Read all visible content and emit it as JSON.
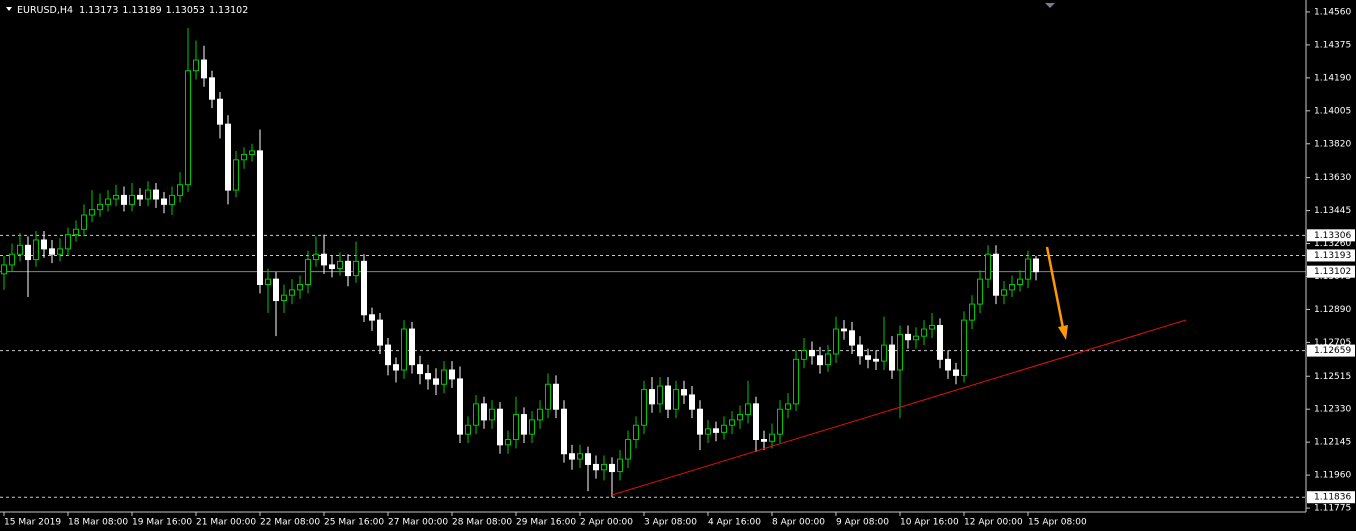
{
  "chart_data": {
    "type": "candlestick",
    "symbol": "EURUSD,H4",
    "bull_color": "#00c800",
    "bear_color": "#ffffff",
    "level_color": "#c8c8c8",
    "bid_color": "#778899",
    "ylim": [
      1.11753,
      1.14627
    ],
    "yticks": [
      {
        "value": 1.1456,
        "label": "1.14560"
      },
      {
        "value": 1.14375,
        "label": "1.14375"
      },
      {
        "value": 1.1419,
        "label": "1.14190"
      },
      {
        "value": 1.14005,
        "label": "1.14005"
      },
      {
        "value": 1.1382,
        "label": "1.13820"
      },
      {
        "value": 1.1363,
        "label": "1.13630"
      },
      {
        "value": 1.13445,
        "label": "1.13445"
      },
      {
        "value": 1.1326,
        "label": "1.13260"
      },
      {
        "value": 1.13075,
        "label": "1.13075"
      },
      {
        "value": 1.1289,
        "label": "1.12890"
      },
      {
        "value": 1.12705,
        "label": "1.12705"
      },
      {
        "value": 1.12515,
        "label": "1.12515"
      },
      {
        "value": 1.1233,
        "label": "1.12330"
      },
      {
        "value": 1.12145,
        "label": "1.12145"
      },
      {
        "value": 1.1196,
        "label": "1.11960"
      },
      {
        "value": 1.11775,
        "label": "1.11775"
      }
    ],
    "levels": [
      {
        "value": 1.13306,
        "label": "1.13306"
      },
      {
        "value": 1.13193,
        "label": "1.13193"
      },
      {
        "value": 1.12659,
        "label": "1.12659"
      },
      {
        "value": 1.11836,
        "label": "1.11836"
      }
    ],
    "bid": {
      "value": 1.13102,
      "label": "1.13102"
    },
    "categories": [
      "15 Mar 2019",
      null,
      null,
      null,
      null,
      null,
      null,
      null,
      "18 Mar 08:00",
      null,
      null,
      null,
      null,
      null,
      null,
      null,
      "19 Mar 16:00",
      null,
      null,
      null,
      null,
      null,
      null,
      null,
      "21 Mar 00:00",
      null,
      null,
      null,
      null,
      null,
      null,
      null,
      "22 Mar 08:00",
      null,
      null,
      null,
      null,
      null,
      null,
      null,
      "25 Mar 16:00",
      null,
      null,
      null,
      null,
      null,
      null,
      null,
      "27 Mar 00:00",
      null,
      null,
      null,
      null,
      null,
      null,
      null,
      "28 Mar 08:00",
      null,
      null,
      null,
      null,
      null,
      null,
      null,
      "29 Mar 16:00",
      null,
      null,
      null,
      null,
      null,
      null,
      null,
      "2 Apr 00:00",
      null,
      null,
      null,
      null,
      null,
      null,
      null,
      "3 Apr 08:00",
      null,
      null,
      null,
      null,
      null,
      null,
      null,
      "4 Apr 16:00",
      null,
      null,
      null,
      null,
      null,
      null,
      null,
      "8 Apr 00:00",
      null,
      null,
      null,
      null,
      null,
      null,
      null,
      "9 Apr 08:00",
      null,
      null,
      null,
      null,
      null,
      null,
      null,
      "10 Apr 16:00",
      null,
      null,
      null,
      null,
      null,
      null,
      null,
      "12 Apr 00:00",
      null,
      null,
      null,
      null,
      null,
      null,
      null,
      "15 Apr 08:00",
      null
    ],
    "open": [
      1.1309,
      1.1314,
      1.132,
      1.1325,
      1.1317,
      1.1328,
      1.1323,
      1.132,
      1.1323,
      1.1331,
      1.1334,
      1.1342,
      1.1345,
      1.1348,
      1.1351,
      1.1353,
      1.1348,
      1.1353,
      1.1351,
      1.1356,
      1.1351,
      1.1348,
      1.1353,
      1.1359,
      1.1423,
      1.1429,
      1.1419,
      1.1407,
      1.1393,
      1.1356,
      1.1373,
      1.1376,
      1.1378,
      1.1303,
      1.1306,
      1.1294,
      1.1297,
      1.13,
      1.1303,
      1.1317,
      1.132,
      1.1314,
      1.1312,
      1.1316,
      1.1308,
      1.1316,
      1.1286,
      1.1283,
      1.1269,
      1.1258,
      1.1255,
      1.1278,
      1.1258,
      1.1253,
      1.125,
      1.1247,
      1.1255,
      1.125,
      1.1219,
      1.1224,
      1.1236,
      1.1227,
      1.1233,
      1.1213,
      1.1216,
      1.123,
      1.1219,
      1.1227,
      1.1233,
      1.1247,
      1.1233,
      1.1208,
      1.1205,
      1.1208,
      1.1202,
      1.1199,
      1.1202,
      1.1198,
      1.1205,
      1.1216,
      1.1224,
      1.1244,
      1.1236,
      1.1246,
      1.1233,
      1.1244,
      1.1241,
      1.1233,
      1.1219,
      1.1222,
      1.122,
      1.1224,
      1.1227,
      1.123,
      1.1236,
      1.1216,
      1.1215,
      1.1219,
      1.1233,
      1.1236,
      1.1261,
      1.1266,
      1.1263,
      1.1258,
      1.1264,
      1.1278,
      1.1277,
      1.1269,
      1.1263,
      1.1261,
      1.126,
      1.1269,
      1.1255,
      1.1275,
      1.1272,
      1.1274,
      1.1278,
      1.128,
      1.1261,
      1.1255,
      1.1252,
      1.1283,
      1.1292,
      1.1306,
      1.132,
      1.1297,
      1.13,
      1.1303,
      1.1306,
      1.13173
    ],
    "high": [
      1.1319,
      1.1326,
      1.1332,
      1.133,
      1.1333,
      1.1333,
      1.1328,
      1.1329,
      1.1335,
      1.1339,
      1.1348,
      1.1356,
      1.1354,
      1.1356,
      1.1359,
      1.1358,
      1.136,
      1.1357,
      1.1361,
      1.136,
      1.1355,
      1.1358,
      1.1366,
      1.1447,
      1.144,
      1.1437,
      1.1423,
      1.1411,
      1.1398,
      1.1378,
      1.138,
      1.1382,
      1.139,
      1.1312,
      1.131,
      1.1303,
      1.1306,
      1.1308,
      1.1322,
      1.133,
      1.1331,
      1.1319,
      1.1321,
      1.132,
      1.1327,
      1.132,
      1.129,
      1.1287,
      1.1273,
      1.1262,
      1.1283,
      1.1282,
      1.1263,
      1.1258,
      1.1256,
      1.126,
      1.126,
      1.1257,
      1.1229,
      1.1241,
      1.124,
      1.1238,
      1.1237,
      1.1221,
      1.124,
      1.1234,
      1.1232,
      1.1238,
      1.1253,
      1.1252,
      1.1238,
      1.1213,
      1.1213,
      1.1212,
      1.1207,
      1.1207,
      1.1206,
      1.121,
      1.1221,
      1.1229,
      1.1249,
      1.1251,
      1.1251,
      1.1251,
      1.1249,
      1.1249,
      1.1246,
      1.1238,
      1.1227,
      1.1226,
      1.1229,
      1.1232,
      1.1235,
      1.1249,
      1.124,
      1.1221,
      1.1225,
      1.1238,
      1.1242,
      1.1266,
      1.1273,
      1.1271,
      1.1268,
      1.1269,
      1.1285,
      1.1283,
      1.1282,
      1.1274,
      1.1267,
      1.1266,
      1.1285,
      1.1274,
      1.128,
      1.128,
      1.1279,
      1.1283,
      1.1287,
      1.1284,
      1.1266,
      1.1259,
      1.1288,
      1.1297,
      1.1311,
      1.1325,
      1.1325,
      1.1305,
      1.1308,
      1.1311,
      1.1322,
      1.13189
    ],
    "low": [
      1.13,
      1.131,
      1.1316,
      1.1296,
      1.1313,
      1.1318,
      1.1315,
      1.1316,
      1.1319,
      1.1327,
      1.133,
      1.1338,
      1.1341,
      1.1344,
      1.1347,
      1.1344,
      1.1344,
      1.1347,
      1.1347,
      1.1346,
      1.1343,
      1.1342,
      1.1349,
      1.1355,
      1.1418,
      1.1414,
      1.1402,
      1.1385,
      1.1348,
      1.1352,
      1.1368,
      1.1372,
      1.1298,
      1.1287,
      1.1274,
      1.1287,
      1.1292,
      1.1295,
      1.1298,
      1.1313,
      1.1309,
      1.1307,
      1.1308,
      1.1302,
      1.1304,
      1.1282,
      1.1277,
      1.1264,
      1.1252,
      1.1248,
      1.125,
      1.1253,
      1.1247,
      1.1244,
      1.1241,
      1.1242,
      1.1245,
      1.1214,
      1.1214,
      1.1219,
      1.1222,
      1.1222,
      1.1208,
      1.1208,
      1.1211,
      1.1214,
      1.1214,
      1.1222,
      1.1228,
      1.1228,
      1.1203,
      1.1199,
      1.12,
      1.1187,
      1.1194,
      1.1193,
      1.11836,
      1.1193,
      1.12,
      1.1211,
      1.1219,
      1.1231,
      1.1231,
      1.1228,
      1.1228,
      1.1236,
      1.1228,
      1.121,
      1.1214,
      1.1215,
      1.1216,
      1.1219,
      1.1222,
      1.1225,
      1.1209,
      1.121,
      1.1211,
      1.1214,
      1.1228,
      1.1232,
      1.1256,
      1.1258,
      1.1253,
      1.1254,
      1.1259,
      1.1272,
      1.1264,
      1.1258,
      1.1256,
      1.1255,
      1.1255,
      1.125,
      1.1228,
      1.1267,
      1.1267,
      1.1269,
      1.1273,
      1.1256,
      1.125,
      1.1247,
      1.1248,
      1.1278,
      1.1287,
      1.1301,
      1.1292,
      1.1292,
      1.1296,
      1.1299,
      1.1301,
      1.13053
    ],
    "close": [
      1.1314,
      1.132,
      1.1325,
      1.1317,
      1.1328,
      1.1323,
      1.132,
      1.1323,
      1.1331,
      1.1334,
      1.1342,
      1.1345,
      1.1348,
      1.1351,
      1.1353,
      1.1348,
      1.1353,
      1.1351,
      1.1356,
      1.1351,
      1.1348,
      1.1353,
      1.1359,
      1.1423,
      1.1429,
      1.1419,
      1.1407,
      1.1393,
      1.1356,
      1.1373,
      1.1376,
      1.1378,
      1.1303,
      1.1306,
      1.1294,
      1.1297,
      1.13,
      1.1303,
      1.1317,
      1.132,
      1.1314,
      1.1312,
      1.1316,
      1.1308,
      1.1316,
      1.1286,
      1.1283,
      1.1269,
      1.1258,
      1.1255,
      1.1278,
      1.1258,
      1.1253,
      1.125,
      1.1247,
      1.1255,
      1.125,
      1.1219,
      1.1224,
      1.1236,
      1.1227,
      1.1233,
      1.1213,
      1.1216,
      1.123,
      1.1219,
      1.1227,
      1.1233,
      1.1247,
      1.1233,
      1.1208,
      1.1205,
      1.1208,
      1.1202,
      1.1199,
      1.1202,
      1.1198,
      1.1205,
      1.1216,
      1.1224,
      1.1244,
      1.1236,
      1.1246,
      1.1233,
      1.1244,
      1.1241,
      1.1233,
      1.1219,
      1.1222,
      1.122,
      1.1224,
      1.1227,
      1.123,
      1.1236,
      1.1216,
      1.1215,
      1.1219,
      1.1233,
      1.1236,
      1.1261,
      1.1266,
      1.1263,
      1.1258,
      1.1264,
      1.1278,
      1.1277,
      1.1269,
      1.1263,
      1.1261,
      1.126,
      1.1269,
      1.1255,
      1.1275,
      1.1272,
      1.1274,
      1.1278,
      1.128,
      1.1261,
      1.1255,
      1.1252,
      1.1283,
      1.1292,
      1.1306,
      1.132,
      1.1297,
      1.13,
      1.1303,
      1.1306,
      1.13173,
      1.13102
    ]
  }
}
